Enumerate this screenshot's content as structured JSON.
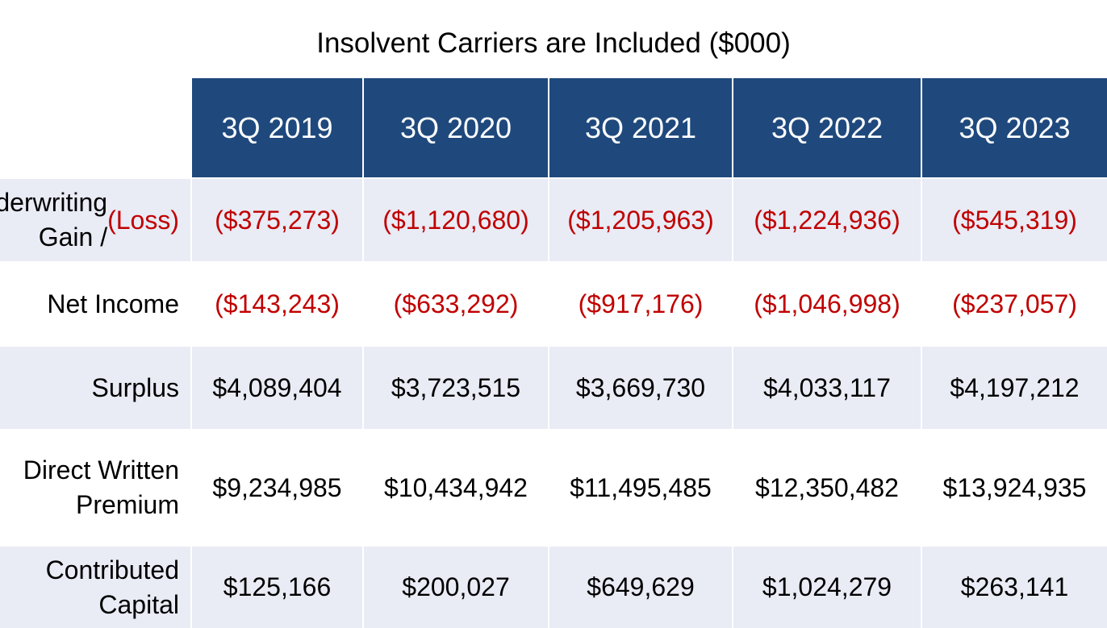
{
  "title": "Insolvent Carriers are Included ($000)",
  "columns": [
    "3Q 2019",
    "3Q 2020",
    "3Q 2021",
    "3Q 2022",
    "3Q 2023"
  ],
  "rows": [
    {
      "label": "Underwriting Gain / ",
      "label_red": "(Loss)",
      "negative": true,
      "values": [
        "($375,273)",
        "($1,120,680)",
        "($1,205,963)",
        "($1,224,936)",
        "($545,319)"
      ]
    },
    {
      "label": "Net Income",
      "negative": true,
      "values": [
        "($143,243)",
        "($633,292)",
        "($917,176)",
        "($1,046,998)",
        "($237,057)"
      ]
    },
    {
      "label": "Surplus",
      "negative": false,
      "values": [
        "$4,089,404",
        "$3,723,515",
        "$3,669,730",
        "$4,033,117",
        "$4,197,212"
      ]
    },
    {
      "label": "Direct Written Premium",
      "negative": false,
      "values": [
        "$9,234,985",
        "$10,434,942",
        "$11,495,485",
        "$12,350,482",
        "$13,924,935"
      ]
    },
    {
      "label": "Contributed Capital",
      "negative": false,
      "values": [
        "$125,166",
        "$200,027",
        "$649,629",
        "$1,024,279",
        "$263,141"
      ]
    }
  ],
  "colors": {
    "header": "#1F497D",
    "shade": "#E9EBF5",
    "negative": "#C00000"
  }
}
